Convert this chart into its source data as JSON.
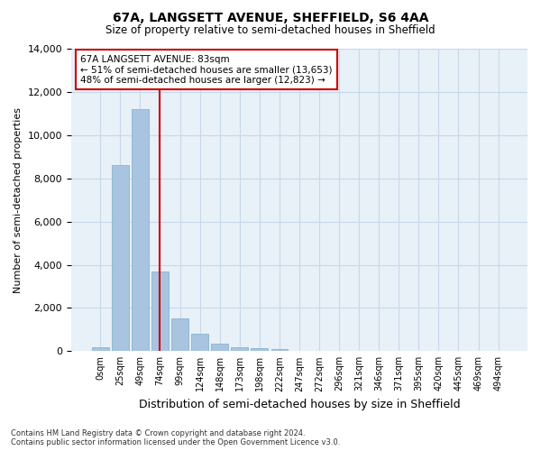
{
  "title_line1": "67A, LANGSETT AVENUE, SHEFFIELD, S6 4AA",
  "title_line2": "Size of property relative to semi-detached houses in Sheffield",
  "xlabel": "Distribution of semi-detached houses by size in Sheffield",
  "ylabel": "Number of semi-detached properties",
  "footnote": "Contains HM Land Registry data © Crown copyright and database right 2024.\nContains public sector information licensed under the Open Government Licence v3.0.",
  "bin_labels": [
    "0sqm",
    "25sqm",
    "49sqm",
    "74sqm",
    "99sqm",
    "124sqm",
    "148sqm",
    "173sqm",
    "198sqm",
    "222sqm",
    "247sqm",
    "272sqm",
    "296sqm",
    "321sqm",
    "346sqm",
    "371sqm",
    "395sqm",
    "420sqm",
    "445sqm",
    "469sqm",
    "494sqm"
  ],
  "bar_values": [
    200,
    8600,
    11200,
    3700,
    1500,
    800,
    350,
    200,
    150,
    80,
    20,
    0,
    0,
    0,
    0,
    0,
    0,
    0,
    0,
    0,
    0
  ],
  "bar_color": "#a8c4e0",
  "bar_edge_color": "#7aaec8",
  "property_bin_index": 3,
  "vline_color": "#cc0000",
  "annotation_title": "67A LANGSETT AVENUE: 83sqm",
  "annotation_line1": "← 51% of semi-detached houses are smaller (13,653)",
  "annotation_line2": "48% of semi-detached houses are larger (12,823) →",
  "annotation_bg": "#ffffff",
  "grid_color": "#c8d8e8",
  "background_color": "#e8f0f8",
  "ylim": [
    0,
    14000
  ],
  "yticks": [
    0,
    2000,
    4000,
    6000,
    8000,
    10000,
    12000,
    14000
  ]
}
